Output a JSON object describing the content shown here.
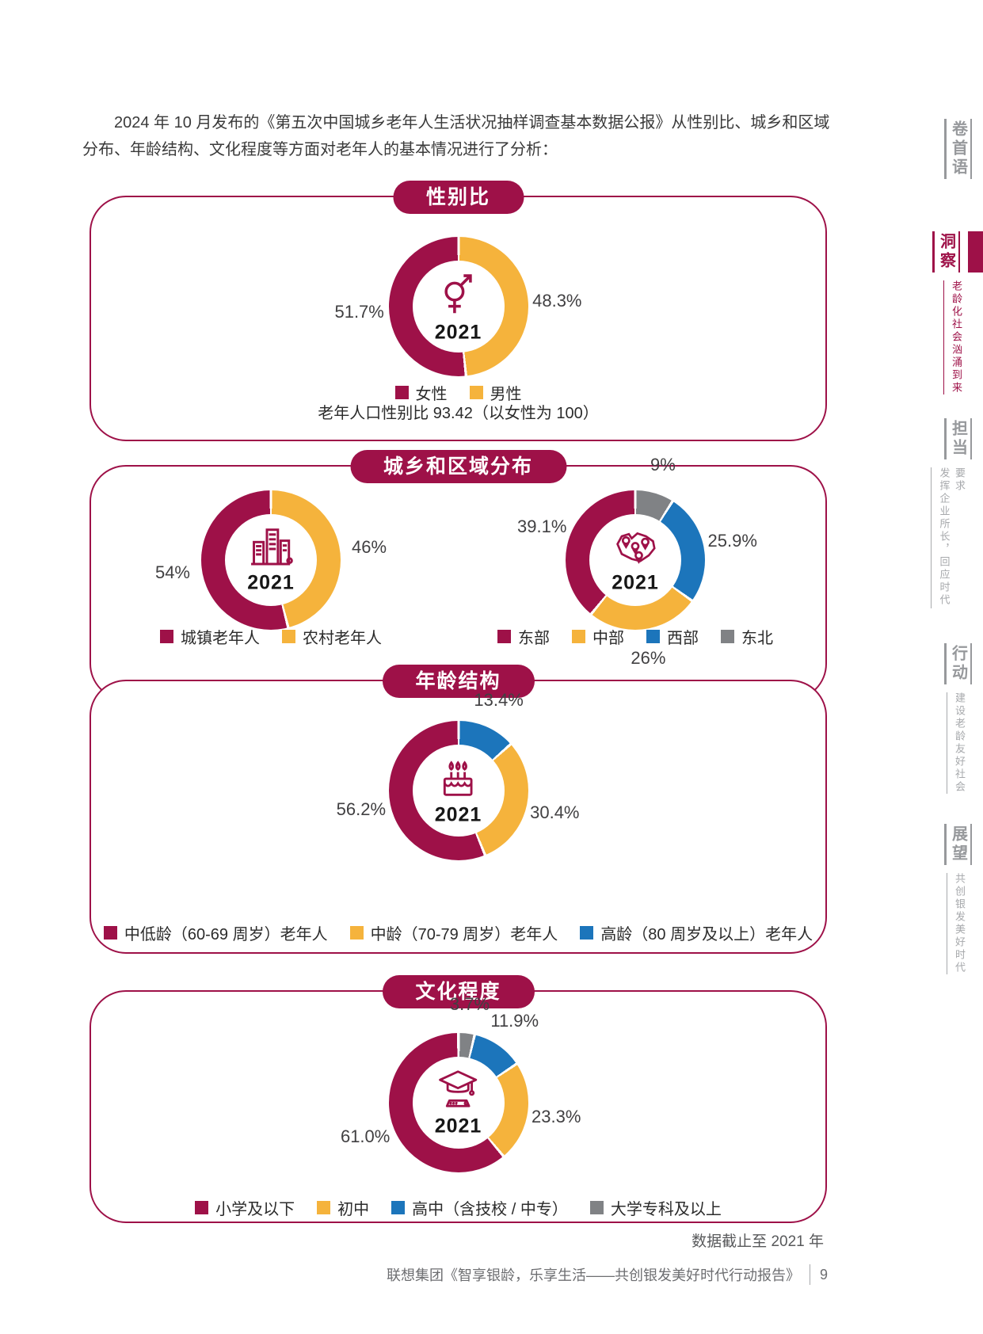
{
  "page": {
    "intro": "2024 年 10 月发布的《第五次中国城乡老年人生活状况抽样调查基本数据公报》从性别比、城乡和区域分布、年龄结构、文化程度等方面对老年人的基本情况进行了分析：",
    "footnote": "数据截止至 2021 年",
    "footer": {
      "report": "联想集团《智享银龄，乐享生活——共创银发美好时代行动报告》",
      "page_number": "9"
    }
  },
  "colors": {
    "crimson": "#9E1148",
    "gold": "#F5B33C",
    "blue": "#1C75BB",
    "gray": "#808285"
  },
  "sidebar": {
    "items": [
      {
        "label": "卷首语",
        "subtitle": "",
        "active": false
      },
      {
        "label": "洞察",
        "subtitle": "老龄化社会汹涌到来",
        "active": true
      },
      {
        "label": "担当",
        "subtitle": "发挥企业所长，回应时代要求",
        "active": false
      },
      {
        "label": "行动",
        "subtitle": "建设老龄友好社会",
        "active": false
      },
      {
        "label": "展望",
        "subtitle": "共创银发美好时代",
        "active": false
      }
    ]
  },
  "chart_data": [
    {
      "type": "pie",
      "section": "性别比",
      "year": "2021",
      "icon": "gender-icon",
      "segments": [
        {
          "label": "女性",
          "value": 51.7,
          "pct": "51.7%",
          "color": "crimson"
        },
        {
          "label": "男性",
          "value": 48.3,
          "pct": "48.3%",
          "color": "gold"
        }
      ],
      "note": "老年人口性别比 93.42（以女性为 100）"
    },
    {
      "type": "pie",
      "section": "城乡和区域分布",
      "charts": [
        {
          "year": "2021",
          "icon": "city-icon",
          "segments": [
            {
              "label": "城镇老年人",
              "value": 54,
              "pct": "54%",
              "color": "crimson"
            },
            {
              "label": "农村老年人",
              "value": 46,
              "pct": "46%",
              "color": "gold"
            }
          ]
        },
        {
          "year": "2021",
          "icon": "map-pins-icon",
          "segments": [
            {
              "label": "东部",
              "value": 39.1,
              "pct": "39.1%",
              "color": "crimson"
            },
            {
              "label": "中部",
              "value": 26,
              "pct": "26%",
              "color": "gold"
            },
            {
              "label": "西部",
              "value": 25.9,
              "pct": "25.9%",
              "color": "blue"
            },
            {
              "label": "东北",
              "value": 9,
              "pct": "9%",
              "color": "gray"
            }
          ]
        }
      ]
    },
    {
      "type": "pie",
      "section": "年龄结构",
      "year": "2021",
      "icon": "cake-icon",
      "segments": [
        {
          "label": "中低龄（60-69 周岁）老年人",
          "value": 56.2,
          "pct": "56.2%",
          "color": "crimson"
        },
        {
          "label": "中龄（70-79 周岁）老年人",
          "value": 30.4,
          "pct": "30.4%",
          "color": "gold"
        },
        {
          "label": "高龄（80 周岁及以上）老年人",
          "value": 13.4,
          "pct": "13.4%",
          "color": "blue"
        }
      ]
    },
    {
      "type": "pie",
      "section": "文化程度",
      "year": "2021",
      "icon": "graduation-cap-icon",
      "segments": [
        {
          "label": "小学及以下",
          "value": 61.0,
          "pct": "61.0%",
          "color": "crimson"
        },
        {
          "label": "初中",
          "value": 23.3,
          "pct": "23.3%",
          "color": "gold"
        },
        {
          "label": "高中（含技校 / 中专）",
          "value": 11.9,
          "pct": "11.9%",
          "color": "blue"
        },
        {
          "label": "大学专科及以上",
          "value": 3.7,
          "pct": "3.7%",
          "color": "gray"
        }
      ]
    }
  ]
}
